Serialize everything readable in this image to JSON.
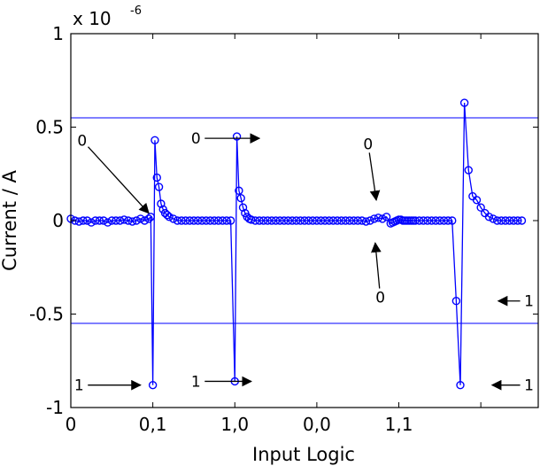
{
  "chart_data": {
    "type": "line",
    "xlabel": "Input Logic",
    "ylabel": "Current / A",
    "y_exponent_prefix": "x 10",
    "y_exponent_power": "-6",
    "xlim": [
      0,
      11.4
    ],
    "ylim": [
      -1,
      1
    ],
    "yticks": [
      -1,
      -0.5,
      0,
      0.5,
      1
    ],
    "ytick_labels": [
      "-1",
      "-0.5",
      "0",
      "0.5",
      "1"
    ],
    "xticks": [
      0,
      2,
      4,
      6,
      8,
      10
    ],
    "xtick_labels": [
      "0",
      "0,1",
      "1,0",
      "0,0",
      "1,1",
      ""
    ],
    "grid": false,
    "line_color": "#0000ff",
    "marker_color": "#0000ff",
    "thresholds": [
      0.55,
      -0.55
    ],
    "series": [
      {
        "x": [
          0,
          0.1,
          0.2,
          0.3,
          0.4,
          0.5,
          0.6,
          0.7,
          0.8,
          0.9,
          1.0,
          1.1,
          1.2,
          1.3,
          1.4,
          1.5,
          1.6,
          1.7,
          1.8,
          1.9,
          1.95,
          2.0,
          2.05,
          2.1,
          2.15,
          2.2,
          2.25,
          2.3,
          2.35,
          2.4,
          2.5,
          2.6,
          2.7,
          2.8,
          2.9,
          3.0,
          3.1,
          3.2,
          3.3,
          3.4,
          3.5,
          3.6,
          3.7,
          3.8,
          3.9,
          4.0,
          4.05,
          4.1,
          4.15,
          4.2,
          4.25,
          4.3,
          4.35,
          4.4,
          4.5,
          4.6,
          4.7,
          4.8,
          4.9,
          5.0,
          5.1,
          5.2,
          5.3,
          5.4,
          5.5,
          5.6,
          5.7,
          5.8,
          5.9,
          6.0,
          6.1,
          6.2,
          6.3,
          6.4,
          6.5,
          6.6,
          6.7,
          6.8,
          6.9,
          7.0,
          7.1,
          7.2,
          7.3,
          7.4,
          7.5,
          7.6,
          7.7,
          7.8,
          7.85,
          7.9,
          7.95,
          8.0,
          8.05,
          8.1,
          8.15,
          8.2,
          8.25,
          8.3,
          8.35,
          8.4,
          8.5,
          8.6,
          8.7,
          8.8,
          8.9,
          9.0,
          9.1,
          9.2,
          9.3,
          9.4,
          9.5,
          9.6,
          9.7,
          9.8,
          9.9,
          10.0,
          10.1,
          10.2,
          10.3,
          10.4,
          10.5,
          10.6,
          10.7,
          10.8,
          10.9,
          11.0
        ],
        "y": [
          0.01,
          0,
          -0.005,
          0,
          0,
          -0.01,
          0,
          0,
          0,
          -0.01,
          0,
          0,
          0,
          0.005,
          0,
          -0.005,
          0,
          0.01,
          0,
          0.01,
          0.02,
          -0.88,
          0.43,
          0.23,
          0.18,
          0.09,
          0.06,
          0.04,
          0.03,
          0.02,
          0.01,
          0,
          0,
          0,
          0,
          0,
          0,
          0,
          0,
          0,
          0,
          0,
          0,
          0,
          0,
          -0.86,
          0.45,
          0.16,
          0.12,
          0.07,
          0.04,
          0.02,
          0.01,
          0.005,
          0,
          0,
          0,
          0,
          0,
          0,
          0,
          0,
          0,
          0,
          0,
          0,
          0,
          0,
          0,
          0,
          0,
          0,
          0,
          0,
          0,
          0,
          0,
          0,
          0,
          0,
          0,
          -0.005,
          0,
          0.01,
          0.015,
          0.01,
          0.02,
          -0.015,
          -0.01,
          -0.005,
          0,
          0.005,
          0.005,
          0,
          0,
          0,
          0,
          0,
          0,
          0,
          0,
          0,
          0,
          0,
          0,
          0,
          0,
          0,
          0,
          -0.43,
          -0.88,
          0.63,
          0.27,
          0.13,
          0.11,
          0.07,
          0.04,
          0.02,
          0.01,
          0,
          0,
          0,
          0,
          0,
          0,
          0
        ]
      }
    ],
    "annotations": [
      {
        "text": "0",
        "tx": 0.55,
        "ty": 0.43,
        "ax": 3.8,
        "ay": 0.04
      },
      {
        "text": "1",
        "tx": 0.4,
        "ty": -0.88,
        "ax": 3.4,
        "ay": -0.88
      },
      {
        "text": "0",
        "tx": 6.1,
        "ty": 0.44,
        "ax": 9.2,
        "ay": 0.44
      },
      {
        "text": "1",
        "tx": 6.1,
        "ty": -0.86,
        "ax": 8.8,
        "ay": -0.86
      },
      {
        "text": "0",
        "tx": 14.5,
        "ty": 0.41,
        "ax": 14.9,
        "ay": 0.11
      },
      {
        "text": "0",
        "tx": 15.1,
        "ty": -0.41,
        "ax": 14.85,
        "ay": -0.12
      },
      {
        "text": "1",
        "tx": 22.35,
        "ty": -0.43,
        "ax": 20.85,
        "ay": -0.43
      },
      {
        "text": "1",
        "tx": 22.35,
        "ty": -0.88,
        "ax": 20.55,
        "ay": -0.88
      }
    ]
  }
}
